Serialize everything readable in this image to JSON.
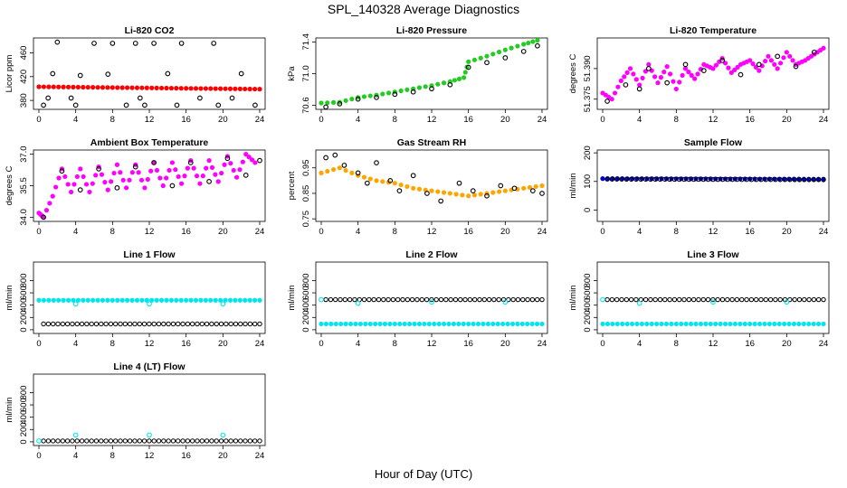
{
  "title": "SPL_140328  Average Diagnostics",
  "xlabel": "Hour of Day (UTC)",
  "colors": {
    "black": "#000000",
    "red": "#ff0000",
    "green": "#22cc22",
    "magenta": "#ff00ff",
    "orange": "#ffa500",
    "blue": "#0000cc",
    "cyan": "#00e5ee"
  },
  "chart_data": [
    {
      "type": "scatter",
      "title": "Li-820 CO2",
      "ylabel": "Licor ppm",
      "xlim": [
        0,
        24
      ],
      "ylim": [
        365,
        485
      ],
      "xticks": [
        "0",
        "4",
        "8",
        "12",
        "16",
        "20",
        "24"
      ],
      "yticks": [
        "380",
        "420",
        "460"
      ],
      "series": [
        {
          "color": "red",
          "marker": "dot",
          "x": [
            0,
            24
          ],
          "y": [
            403,
            399
          ]
        },
        {
          "color": "black",
          "marker": "circle",
          "x": [
            0.5,
            1.0,
            1.5,
            2.0,
            3.5,
            4.0,
            4.5,
            6.0,
            7.5,
            8.0,
            9.5,
            10.5,
            11.0,
            11.5,
            12.5,
            14.0,
            15.0,
            15.5,
            17.5,
            19.0,
            19.5,
            21.0,
            22.0,
            23.5
          ],
          "y": [
            372,
            384,
            425,
            478,
            384,
            372,
            422,
            476,
            424,
            476,
            372,
            476,
            384,
            372,
            476,
            425,
            372,
            476,
            384,
            476,
            372,
            384,
            425,
            372
          ]
        }
      ]
    },
    {
      "type": "scatter",
      "title": "Li-820 Pressure",
      "ylabel": "kPa",
      "xlim": [
        0,
        24
      ],
      "ylim": [
        70.55,
        71.45
      ],
      "xticks": [
        "0",
        "4",
        "8",
        "12",
        "16",
        "20",
        "24"
      ],
      "yticks": [
        "70.6",
        "71.0",
        "71.4"
      ],
      "series": [
        {
          "color": "green",
          "marker": "dot",
          "x": [
            0,
            2,
            4,
            6,
            8,
            10,
            12,
            14,
            15.5,
            16,
            18,
            20,
            22,
            23.5
          ],
          "y": [
            70.63,
            70.64,
            70.7,
            70.73,
            70.77,
            70.81,
            70.85,
            70.9,
            70.95,
            71.15,
            71.22,
            71.3,
            71.37,
            71.42
          ]
        },
        {
          "color": "black",
          "marker": "circle",
          "x": [
            0.5,
            2,
            4,
            6,
            8,
            10,
            12,
            14,
            16,
            18,
            20,
            22,
            23.5
          ],
          "y": [
            70.58,
            70.62,
            70.68,
            70.7,
            70.74,
            70.77,
            70.81,
            70.86,
            71.08,
            71.14,
            71.2,
            71.28,
            71.35
          ]
        }
      ]
    },
    {
      "type": "scatter",
      "title": "Li-820 Temperature",
      "ylabel": "degrees C",
      "xlim": [
        0,
        24
      ],
      "ylim": [
        51.37,
        51.405
      ],
      "xticks": [
        "0",
        "4",
        "8",
        "12",
        "16",
        "20",
        "24"
      ],
      "yticks": [
        "51.375",
        "51.390"
      ],
      "series": [
        {
          "color": "magenta",
          "marker": "dot",
          "x": [
            0,
            1,
            2,
            3,
            4,
            5,
            6,
            7,
            8,
            9,
            10,
            11,
            12,
            13,
            14,
            15,
            16,
            17,
            18,
            19,
            20,
            21,
            22,
            23,
            24
          ],
          "y": [
            51.378,
            51.375,
            51.384,
            51.39,
            51.382,
            51.392,
            51.383,
            51.391,
            51.38,
            51.39,
            51.385,
            51.392,
            51.39,
            51.395,
            51.388,
            51.392,
            51.394,
            51.389,
            51.396,
            51.39,
            51.398,
            51.392,
            51.394,
            51.397,
            51.4
          ]
        },
        {
          "color": "black",
          "marker": "circle",
          "x": [
            0.5,
            2.5,
            4,
            5,
            7,
            9,
            11,
            13,
            15,
            17,
            19,
            21,
            23
          ],
          "y": [
            51.374,
            51.382,
            51.38,
            51.39,
            51.383,
            51.392,
            51.389,
            51.394,
            51.387,
            51.392,
            51.396,
            51.391,
            51.398
          ]
        }
      ]
    },
    {
      "type": "scatter",
      "title": "Ambient Box Temperature",
      "ylabel": "degrees C",
      "xlim": [
        0,
        24
      ],
      "ylim": [
        33.8,
        37.2
      ],
      "xticks": [
        "0",
        "4",
        "8",
        "12",
        "16",
        "20",
        "24"
      ],
      "yticks": [
        "34.0",
        "35.5",
        "37.0"
      ],
      "series": [
        {
          "color": "magenta",
          "marker": "dot",
          "x": [
            0,
            0.5,
            1.5,
            2.5,
            3.5,
            4.5,
            5.5,
            6.5,
            7.5,
            8.5,
            9.5,
            10.5,
            11.5,
            12.5,
            13.5,
            14.5,
            15.5,
            16.5,
            17.5,
            18.5,
            19.5,
            20.5,
            21.5,
            22.5,
            23.5
          ],
          "y": [
            34.2,
            34.0,
            35.0,
            36.3,
            35.2,
            36.3,
            35.2,
            36.4,
            35.3,
            36.5,
            35.4,
            36.5,
            35.4,
            36.6,
            35.5,
            36.6,
            35.6,
            36.7,
            35.6,
            36.7,
            35.7,
            36.9,
            35.9,
            37.0,
            36.6
          ]
        },
        {
          "color": "black",
          "marker": "circle",
          "x": [
            0.5,
            2.5,
            4.5,
            6.5,
            8.5,
            10.5,
            12.5,
            14.5,
            16.5,
            18.5,
            20.5,
            22.5,
            24
          ],
          "y": [
            34.0,
            36.2,
            35.3,
            36.3,
            35.4,
            36.4,
            36.6,
            35.5,
            36.6,
            35.7,
            36.8,
            36.0,
            36.7
          ]
        }
      ]
    },
    {
      "type": "scatter",
      "title": "Gas Stream RH",
      "ylabel": "percent",
      "xlim": [
        0,
        24
      ],
      "ylim": [
        0.74,
        1.02
      ],
      "xticks": [
        "0",
        "4",
        "8",
        "12",
        "16",
        "20",
        "24"
      ],
      "yticks": [
        "0.75",
        "0.85",
        "0.95"
      ],
      "series": [
        {
          "color": "orange",
          "marker": "dot",
          "x": [
            0,
            2,
            4,
            6,
            8,
            10,
            12,
            14,
            16,
            18,
            20,
            22,
            24
          ],
          "y": [
            0.93,
            0.95,
            0.92,
            0.9,
            0.89,
            0.87,
            0.86,
            0.85,
            0.84,
            0.85,
            0.86,
            0.87,
            0.88
          ]
        },
        {
          "color": "black",
          "marker": "circle",
          "x": [
            0.5,
            1.5,
            2.5,
            4,
            5,
            6,
            7.5,
            8.5,
            10,
            11.5,
            13,
            15,
            16.5,
            18,
            19.5,
            21,
            23,
            24
          ],
          "y": [
            0.99,
            1.0,
            0.96,
            0.93,
            0.89,
            0.97,
            0.9,
            0.86,
            0.92,
            0.85,
            0.82,
            0.89,
            0.86,
            0.84,
            0.88,
            0.87,
            0.86,
            0.85
          ]
        }
      ]
    },
    {
      "type": "scatter",
      "title": "Sample Flow",
      "ylabel": "ml/min",
      "xlim": [
        0,
        24
      ],
      "ylim": [
        -40,
        210
      ],
      "xticks": [
        "0",
        "4",
        "8",
        "12",
        "16",
        "20",
        "24"
      ],
      "yticks": [
        "0",
        "100",
        "200"
      ],
      "series": [
        {
          "color": "blue",
          "marker": "dot",
          "x": [
            0,
            24
          ],
          "y": [
            110,
            108
          ]
        },
        {
          "color": "black",
          "marker": "circle",
          "x": [
            0.5,
            24
          ],
          "y": [
            108,
            106
          ]
        }
      ]
    },
    {
      "type": "scatter",
      "title": "Line 1 Flow",
      "ylabel": "ml/min",
      "xlim": [
        0,
        24
      ],
      "ylim": [
        -60,
        1100
      ],
      "xticks": [
        "0",
        "4",
        "8",
        "12",
        "16",
        "20",
        "24"
      ],
      "yticks": [
        "0",
        "200",
        "400",
        "600",
        "800"
      ],
      "series": [
        {
          "color": "cyan",
          "marker": "dot",
          "x": [
            0,
            24
          ],
          "y": [
            480,
            480
          ]
        },
        {
          "color": "black",
          "marker": "circle",
          "x": [
            0.5,
            24
          ],
          "y": [
            95,
            95
          ]
        },
        {
          "color": "cyan",
          "marker": "circle",
          "x": [
            4,
            12,
            20
          ],
          "y": [
            420,
            420,
            420
          ]
        }
      ]
    },
    {
      "type": "scatter",
      "title": "Line 2 Flow",
      "ylabel": "ml/min",
      "xlim": [
        0,
        24
      ],
      "ylim": [
        -60,
        1100
      ],
      "xticks": [
        "0",
        "4",
        "8",
        "12",
        "16",
        "20",
        "24"
      ],
      "yticks": [
        "0",
        "200",
        "400",
        "600",
        "800"
      ],
      "series": [
        {
          "color": "cyan",
          "marker": "dot",
          "x": [
            0,
            24
          ],
          "y": [
            95,
            95
          ]
        },
        {
          "color": "black",
          "marker": "circle",
          "x": [
            0.5,
            24
          ],
          "y": [
            490,
            490
          ]
        },
        {
          "color": "cyan",
          "marker": "circle",
          "x": [
            0,
            4,
            12,
            20
          ],
          "y": [
            490,
            430,
            450,
            450
          ]
        }
      ]
    },
    {
      "type": "scatter",
      "title": "Line 3 Flow",
      "ylabel": "ml/min",
      "xlim": [
        0,
        24
      ],
      "ylim": [
        -60,
        1100
      ],
      "xticks": [
        "0",
        "4",
        "8",
        "12",
        "16",
        "20",
        "24"
      ],
      "yticks": [
        "0",
        "200",
        "400",
        "600",
        "800"
      ],
      "series": [
        {
          "color": "cyan",
          "marker": "dot",
          "x": [
            0,
            24
          ],
          "y": [
            95,
            95
          ]
        },
        {
          "color": "black",
          "marker": "circle",
          "x": [
            0.5,
            24
          ],
          "y": [
            490,
            490
          ]
        },
        {
          "color": "cyan",
          "marker": "circle",
          "x": [
            0,
            4,
            12,
            20
          ],
          "y": [
            490,
            430,
            450,
            450
          ]
        }
      ]
    },
    {
      "type": "scatter",
      "title": "Line 4 (LT) Flow",
      "ylabel": "ml/min",
      "xlim": [
        0,
        24
      ],
      "ylim": [
        -60,
        1100
      ],
      "xticks": [
        "0",
        "4",
        "8",
        "12",
        "16",
        "20",
        "24"
      ],
      "yticks": [
        "0",
        "200",
        "400",
        "600",
        "800"
      ],
      "series": [
        {
          "color": "black",
          "marker": "circle",
          "x": [
            0.5,
            24
          ],
          "y": [
            15,
            15
          ]
        },
        {
          "color": "cyan",
          "marker": "circle",
          "x": [
            0,
            4,
            12,
            20
          ],
          "y": [
            15,
            110,
            110,
            110
          ]
        }
      ]
    }
  ]
}
